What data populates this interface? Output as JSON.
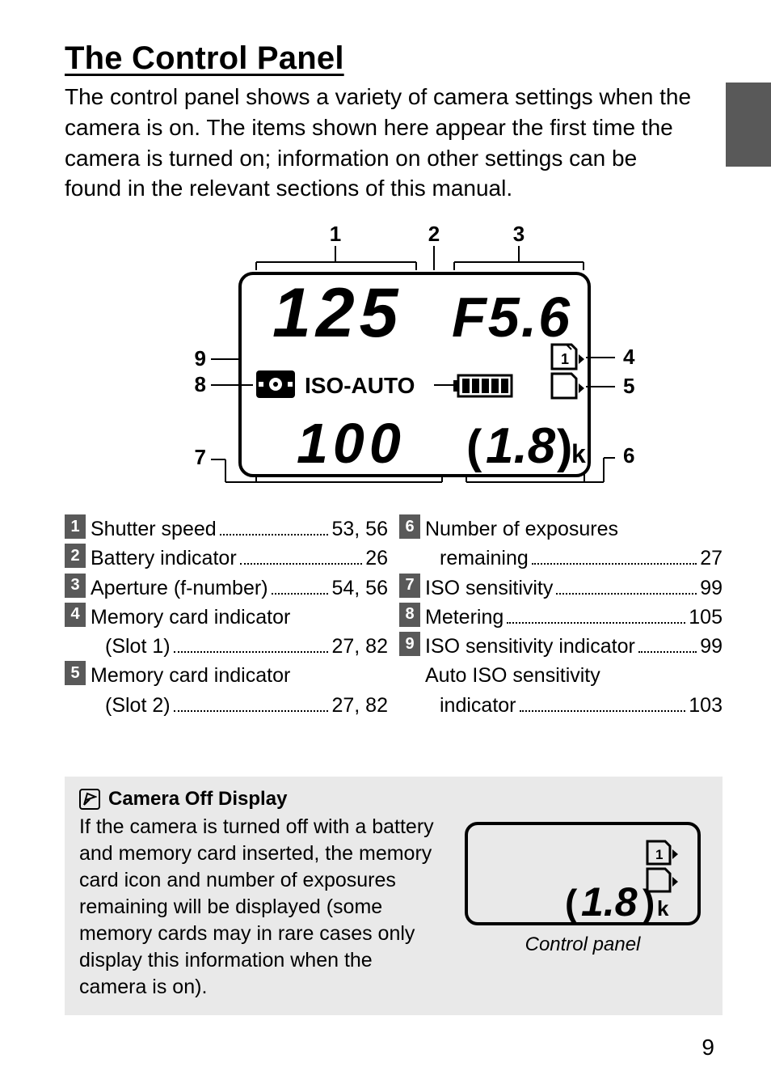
{
  "title": "The Control Panel",
  "intro": "The control panel shows a variety of camera settings when the camera is on.  The items shown here appear the first time the camera is turned on; information on other settings can be found in the relevant sections of this manual.",
  "diagram": {
    "callouts": [
      "1",
      "2",
      "3",
      "4",
      "5",
      "6",
      "7",
      "8",
      "9"
    ],
    "shutter_display": "125",
    "aperture_display": "F5.6",
    "iso_auto_label": "ISO-AUTO",
    "iso_value_display": "100",
    "exposures_display": "1.8",
    "exposures_suffix": "k",
    "battery_segments": 5
  },
  "refs_left": [
    {
      "num": "1",
      "rows": [
        {
          "label": "Shutter speed",
          "page": "53, 56"
        }
      ]
    },
    {
      "num": "2",
      "rows": [
        {
          "label": "Battery indicator",
          "page": "26"
        }
      ]
    },
    {
      "num": "3",
      "rows": [
        {
          "label": "Aperture (f-number)",
          "page": "54, 56"
        }
      ]
    },
    {
      "num": "4",
      "rows": [
        {
          "label": "Memory card indicator",
          "page": ""
        },
        {
          "label": "(Slot 1)",
          "page": "27, 82",
          "sub": true
        }
      ]
    },
    {
      "num": "5",
      "rows": [
        {
          "label": "Memory card indicator",
          "page": ""
        },
        {
          "label": "(Slot 2)",
          "page": "27, 82",
          "sub": true
        }
      ]
    }
  ],
  "refs_right": [
    {
      "num": "6",
      "rows": [
        {
          "label": "Number of exposures",
          "page": ""
        },
        {
          "label": "remaining",
          "page": "27",
          "sub": true
        }
      ]
    },
    {
      "num": "7",
      "rows": [
        {
          "label": "ISO sensitivity",
          "page": "99"
        }
      ]
    },
    {
      "num": "8",
      "rows": [
        {
          "label": "Metering",
          "page": "105"
        }
      ]
    },
    {
      "num": "9",
      "rows": [
        {
          "label": "ISO sensitivity indicator",
          "page": "99"
        },
        {
          "label": "Auto ISO sensitivity",
          "page": ""
        },
        {
          "label": "indicator",
          "page": "103",
          "sub": true
        }
      ]
    }
  ],
  "note": {
    "title": "Camera Off Display",
    "text": "If the camera is turned off with a battery and memory card inserted, the memory card icon and number of exposures remaining will be displayed (some memory cards may in rare cases only display this information when the camera is on).",
    "caption": "Control panel",
    "panel_exposures": "1.8",
    "panel_suffix": "k"
  },
  "page_number": "9",
  "colors": {
    "tab": "#595959",
    "numbox_bg": "#595959",
    "note_bg": "#e9e9e9"
  }
}
